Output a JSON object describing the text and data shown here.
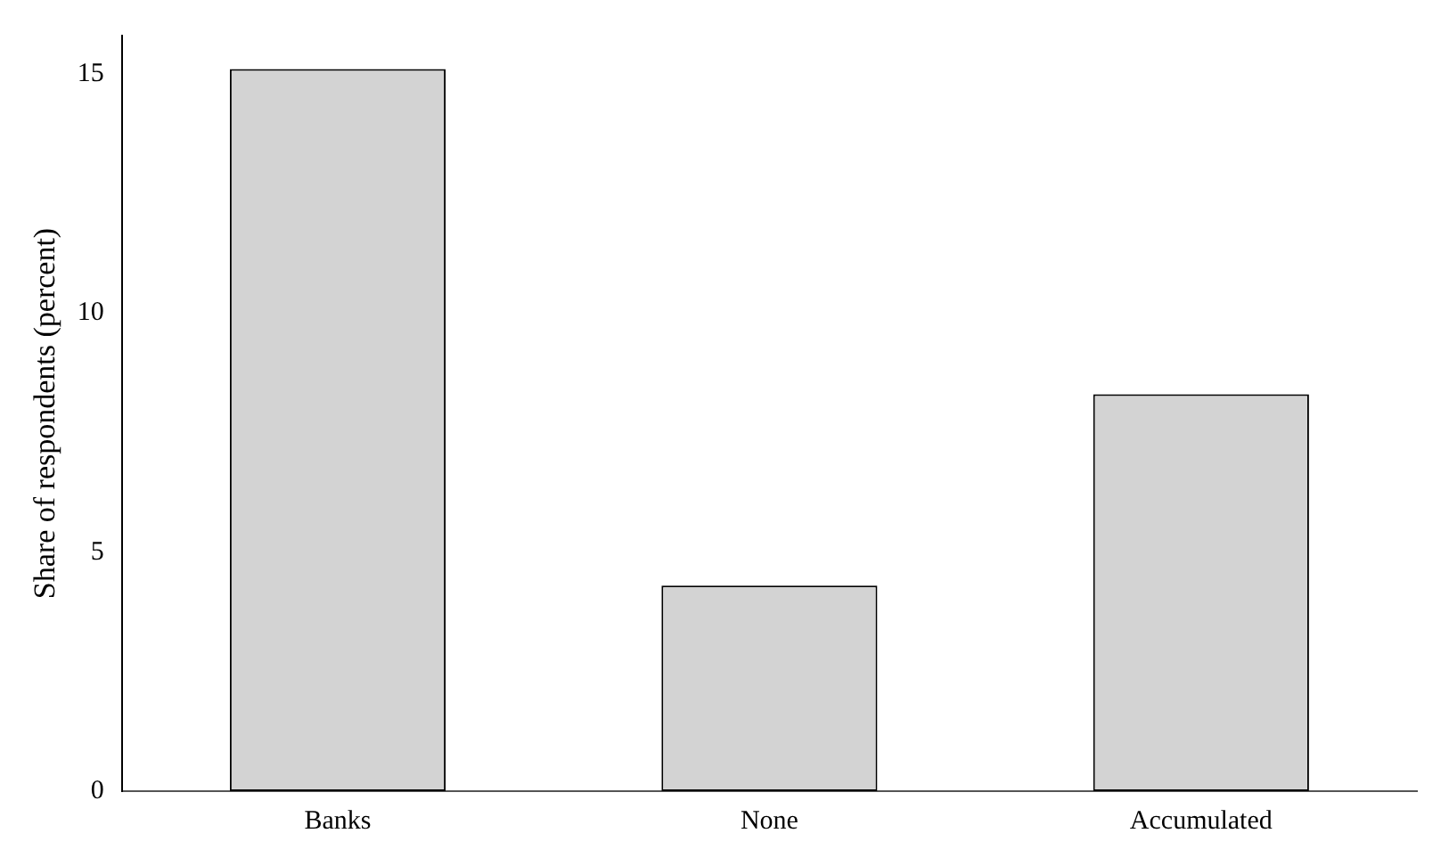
{
  "chart_data": {
    "type": "bar",
    "ylabel": "Share of respondents (percent)",
    "categories": [
      "Banks",
      "None",
      "Accumulated"
    ],
    "values": [
      15.1,
      4.3,
      8.3
    ],
    "color": "#d3d3d3",
    "ylim": [
      0,
      15.8
    ],
    "yticks": [
      0,
      5,
      10,
      15
    ],
    "grid": false,
    "legend": false
  }
}
